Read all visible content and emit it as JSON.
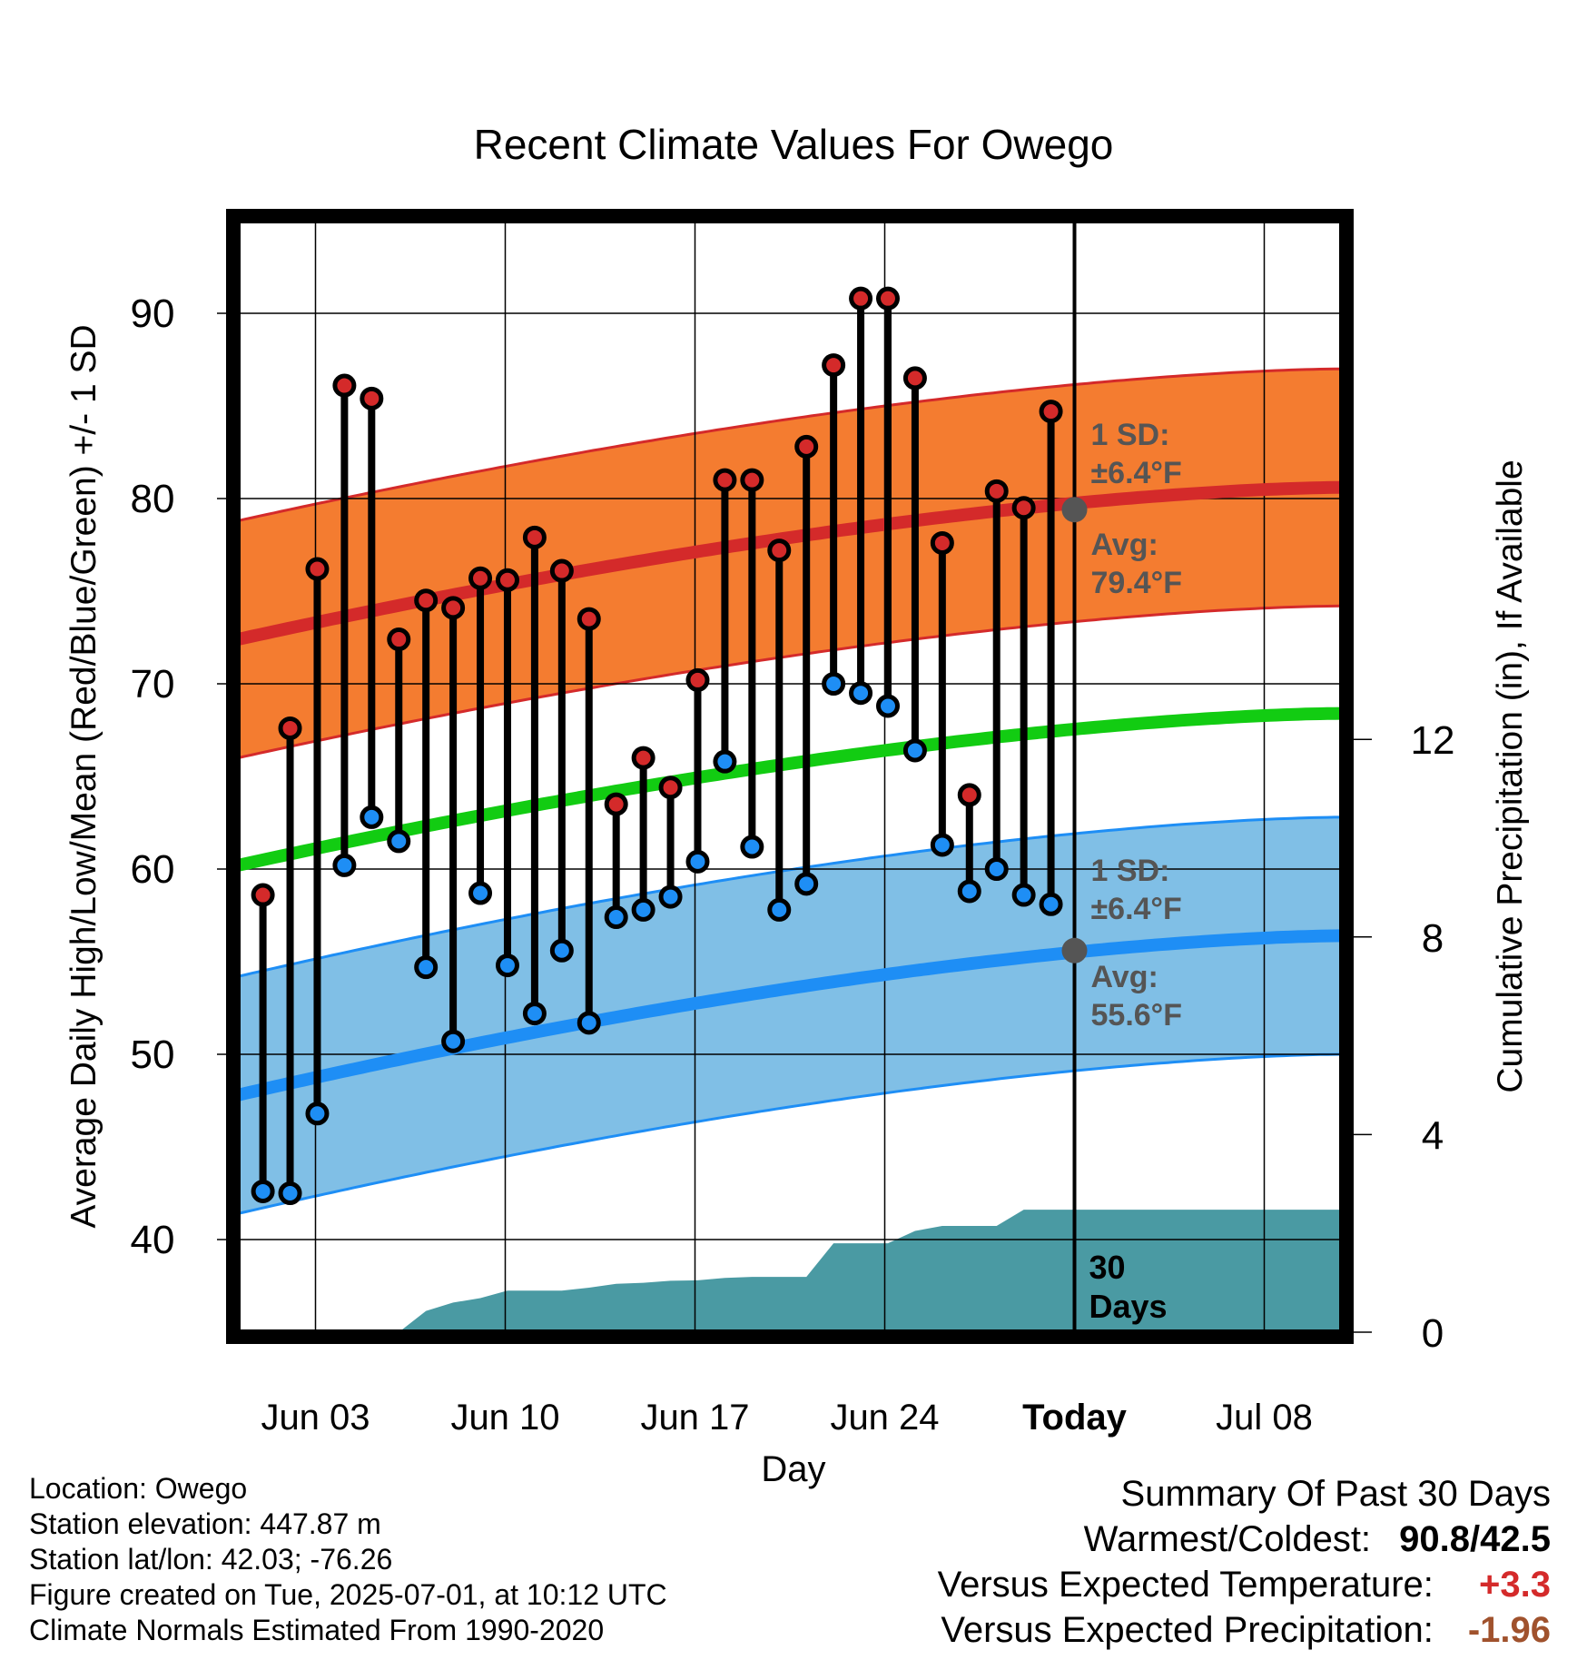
{
  "chart_data": {
    "type": "line",
    "title": "Recent Climate Values For Owego",
    "xlabel": "Day",
    "ylabel_left": "Average Daily High/Low/Mean (Red/Blue/Green) +/- 1 SD",
    "ylabel_right": "Cumulative Precipitation (in), If Available",
    "x_ticks": [
      "Jun 03",
      "Jun 10",
      "Jun 17",
      "Jun 24",
      "Today",
      "Jul 08"
    ],
    "ylim_left": [
      35,
      95
    ],
    "yticks_left": [
      40,
      50,
      60,
      70,
      80,
      90
    ],
    "ylim_right": [
      0,
      22.5
    ],
    "yticks_right": [
      0,
      4,
      8,
      12
    ],
    "days": [
      "Jun 01",
      "Jun 02",
      "Jun 03",
      "Jun 04",
      "Jun 05",
      "Jun 06",
      "Jun 07",
      "Jun 08",
      "Jun 09",
      "Jun 10",
      "Jun 11",
      "Jun 12",
      "Jun 13",
      "Jun 14",
      "Jun 15",
      "Jun 16",
      "Jun 17",
      "Jun 18",
      "Jun 19",
      "Jun 20",
      "Jun 21",
      "Jun 22",
      "Jun 23",
      "Jun 24",
      "Jun 25",
      "Jun 26",
      "Jun 27",
      "Jun 28",
      "Jun 29",
      "Jun 30"
    ],
    "series": [
      {
        "name": "Daily High",
        "values": [
          58.6,
          67.6,
          76.2,
          86.1,
          85.4,
          72.4,
          74.5,
          74.1,
          75.7,
          75.6,
          77.9,
          76.1,
          73.5,
          63.5,
          66.0,
          64.4,
          70.2,
          81.0,
          81.0,
          77.2,
          82.8,
          87.2,
          90.8,
          90.8,
          86.5,
          77.6,
          64.0,
          80.4,
          79.5,
          84.7
        ]
      },
      {
        "name": "Daily Low",
        "values": [
          42.6,
          42.5,
          46.8,
          60.2,
          62.8,
          61.5,
          54.7,
          50.7,
          58.7,
          54.8,
          52.2,
          55.6,
          51.7,
          57.4,
          57.8,
          58.5,
          60.4,
          65.8,
          61.2,
          57.8,
          59.2,
          70.0,
          69.5,
          68.8,
          66.4,
          61.3,
          58.8,
          60.0,
          58.6,
          58.1
        ]
      },
      {
        "name": "Normal High",
        "start": 72.4,
        "end": 80.6,
        "sd": 6.4
      },
      {
        "name": "Normal Low",
        "start": 47.8,
        "end": 56.4,
        "sd": 6.4
      },
      {
        "name": "Normal Mean",
        "start": 60.2,
        "end": 68.4
      },
      {
        "name": "Cumulative Precipitation",
        "values": [
          0,
          0,
          0,
          0,
          0,
          0,
          0.43,
          0.6,
          0.69,
          0.84,
          0.84,
          0.84,
          0.9,
          0.98,
          1.0,
          1.04,
          1.05,
          1.1,
          1.12,
          1.12,
          1.12,
          1.8,
          1.8,
          1.8,
          2.05,
          2.15,
          2.15,
          2.15,
          2.48,
          2.48
        ]
      }
    ],
    "annotations": {
      "high_sd_label": "1 SD:",
      "high_sd_value": "±6.4°F",
      "high_avg_label": "Avg:",
      "high_avg_value": "79.4°F",
      "low_sd_label": "1 SD:",
      "low_sd_value": "±6.4°F",
      "low_avg_label": "Avg:",
      "low_avg_value": "55.6°F",
      "precip_label_1": "30",
      "precip_label_2": "Days",
      "today_high_avg": 79.4,
      "today_low_avg": 55.6
    },
    "colors": {
      "high": "#d42a2a",
      "high_band": "#f47c30",
      "low": "#1e8ef5",
      "low_band": "#80bfe6",
      "mean": "#12cc12",
      "precip": "#4a9aa3",
      "annotation": "#555555"
    },
    "grid": true
  },
  "info": {
    "location": "Location: Owego",
    "elevation": "Station elevation: 447.87 m",
    "latlon": "Station lat/lon: 42.03; -76.26",
    "created": "Figure created on Tue, 2025-07-01, at 10:12 UTC",
    "normals": "Climate Normals Estimated From 1990-2020"
  },
  "summary": {
    "title": "Summary Of Past 30 Days",
    "warmest_label": "Warmest/Coldest:",
    "warmest_value": "90.8/42.5",
    "temp_label": "Versus Expected Temperature:",
    "temp_value": "+3.3",
    "temp_color": "#d42a2a",
    "precip_label": "Versus Expected Precipitation:",
    "precip_value": "-1.96",
    "precip_color": "#a0522d"
  }
}
